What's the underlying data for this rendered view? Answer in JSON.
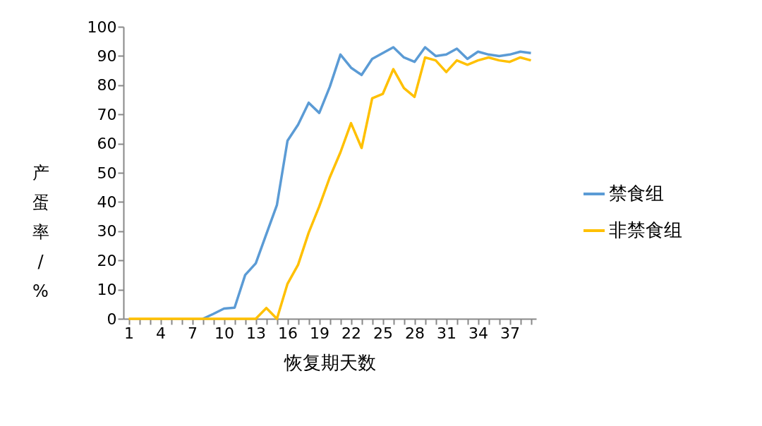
{
  "chart_data": {
    "type": "line",
    "xlabel": "恢复期天数",
    "ylabel": "产蛋率/%",
    "categories": [
      "1",
      null,
      null,
      "4",
      null,
      null,
      "7",
      null,
      null,
      "10",
      null,
      null,
      "13",
      null,
      null,
      "16",
      null,
      null,
      "19",
      null,
      null,
      "22",
      null,
      null,
      "25",
      null,
      null,
      "28",
      null,
      null,
      "31",
      null,
      null,
      "34",
      null,
      null,
      "37",
      null,
      null
    ],
    "series": [
      {
        "name": "禁食组",
        "color": "#5b9bd5",
        "values": [
          null,
          null,
          null,
          null,
          null,
          null,
          null,
          0,
          1.7,
          3.5,
          3.8,
          15,
          19,
          29,
          39,
          61,
          66.5,
          74,
          70.5,
          79.5,
          90.5,
          86,
          83.5,
          89,
          91,
          93,
          89.5,
          88,
          93,
          90,
          90.5,
          92.5,
          89,
          91.5,
          90.5,
          90,
          90.5,
          91.5,
          91
        ]
      },
      {
        "name": "非禁食组",
        "color": "#ffc000",
        "values": [
          0,
          0,
          0,
          0,
          0,
          0,
          0,
          0,
          0,
          0,
          0,
          0,
          0,
          3.7,
          0,
          12,
          18.5,
          29.5,
          38.5,
          48.5,
          57,
          67,
          58.5,
          75.5,
          77,
          85.5,
          79,
          76,
          89.5,
          88.5,
          84.5,
          88.5,
          87,
          88.5,
          89.5,
          88.5,
          88,
          89.5,
          88.5
        ]
      }
    ],
    "ylim": [
      0,
      100
    ],
    "yticks": [
      0,
      10,
      20,
      30,
      40,
      50,
      60,
      70,
      80,
      90,
      100
    ],
    "grid": false,
    "legend": "right",
    "marker": "none",
    "line_style": "solid"
  }
}
